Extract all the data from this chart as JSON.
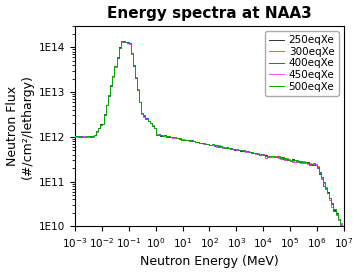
{
  "title": "Energy spectra at NAA3",
  "xlabel": "Neutron Energy (MeV)",
  "ylabel": "Neutron Flux\n(#/cm²/lethargy)",
  "xlim": [
    0.001,
    10000000.0
  ],
  "ylim": [
    10000000000.0,
    300000000000000.0
  ],
  "legend_labels": [
    "250eqXe",
    "300eqXe",
    "400eqXe",
    "450eqXe",
    "500eqXe"
  ],
  "line_colors": [
    "#333333",
    "#ff5555",
    "#4444ff",
    "#ff44ff",
    "#00aa00"
  ],
  "title_fontsize": 11,
  "label_fontsize": 9,
  "tick_fontsize": 7.5,
  "legend_fontsize": 7.5,
  "x_ticks": [
    0.001,
    0.01,
    0.1,
    1.0,
    10.0,
    100.0,
    1000.0,
    10000.0,
    100000.0,
    1000000.0,
    10000000.0
  ],
  "y_ticks": [
    10000000000.0,
    100000000000.0,
    1000000000000.0,
    10000000000000.0,
    100000000000000.0
  ],
  "x_tick_labels": [
    "10$^{-3}$",
    "10$^{-2}$",
    "10$^{-1}$",
    "10$^{0}$",
    "10$^{1}$",
    "10$^{2}$",
    "10$^{3}$",
    "10$^{4}$",
    "10$^{5}$",
    "10$^{6}$",
    "10$^{7}$"
  ],
  "y_tick_labels": [
    "1E10",
    "1E11",
    "1E12",
    "1E13",
    "1E14"
  ]
}
